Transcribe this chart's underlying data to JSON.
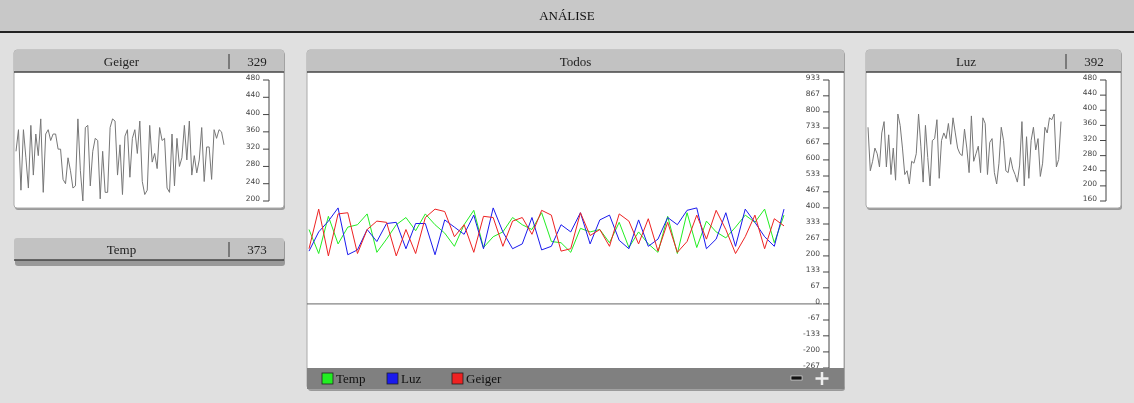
{
  "chart_data": [
    {
      "type": "other",
      "title": "ANÁLISE"
    },
    {
      "type": "line",
      "title": "Geiger",
      "annotations": [
        "329"
      ],
      "categories": [
        null,
        null,
        null,
        null,
        null,
        null,
        null,
        null,
        null,
        null,
        null,
        null,
        null,
        null,
        null,
        null,
        null,
        null,
        null,
        null,
        null,
        null,
        null,
        null,
        null,
        null,
        null,
        null,
        null,
        null,
        null,
        null,
        null,
        null,
        null,
        null,
        null,
        null,
        null,
        null,
        null,
        null,
        null,
        null,
        null,
        null,
        null,
        null,
        null,
        null,
        null,
        null,
        null,
        null,
        null,
        null,
        null,
        null,
        null,
        null,
        null,
        null,
        null,
        null,
        null,
        null,
        null,
        null,
        null,
        null,
        null,
        null,
        null,
        null,
        null,
        null,
        null,
        null,
        null,
        null,
        null,
        null,
        null,
        null,
        null
      ],
      "values": [
        315,
        365,
        225,
        365,
        300,
        230,
        375,
        260,
        355,
        305,
        390,
        220,
        355,
        365,
        340,
        355,
        355,
        320,
        320,
        250,
        240,
        300,
        270,
        230,
        235,
        390,
        270,
        200,
        370,
        375,
        235,
        315,
        345,
        340,
        205,
        315,
        220,
        220,
        370,
        390,
        385,
        260,
        330,
        215,
        350,
        365,
        255,
        345,
        365,
        310,
        385,
        245,
        215,
        225,
        375,
        290,
        310,
        275,
        370,
        340,
        345,
        230,
        220,
        355,
        235,
        345,
        280,
        300,
        375,
        295,
        385,
        260,
        305,
        265,
        295,
        370,
        245,
        325,
        325,
        250,
        365,
        345,
        365,
        360,
        330
      ],
      "color": "#777777",
      "line_style": "solid",
      "ylim": [
        200,
        480
      ],
      "yticks": [
        200,
        240,
        280,
        320,
        360,
        400,
        440,
        480
      ],
      "grid": false
    },
    {
      "type": "other",
      "title": "Temp",
      "annotations": [
        "373"
      ]
    },
    {
      "type": "line",
      "title": "Todos",
      "categories": [
        null,
        null,
        null,
        null,
        null,
        null,
        null,
        null,
        null,
        null,
        null,
        null,
        null,
        null,
        null,
        null,
        null,
        null,
        null,
        null,
        null,
        null,
        null,
        null,
        null,
        null,
        null,
        null,
        null,
        null,
        null,
        null,
        null,
        null,
        null,
        null,
        null,
        null,
        null,
        null,
        null,
        null,
        null,
        null,
        null,
        null,
        null,
        null,
        null,
        null
      ],
      "series": [
        {
          "name": "Temp",
          "color": "#22ee22",
          "values": [
            310,
            210,
            365,
            250,
            320,
            330,
            375,
            215,
            270,
            330,
            360,
            305,
            375,
            330,
            295,
            240,
            330,
            390,
            235,
            280,
            300,
            360,
            330,
            310,
            380,
            260,
            255,
            215,
            315,
            300,
            310,
            255,
            340,
            235,
            300,
            250,
            215,
            365,
            210,
            380,
            235,
            345,
            300,
            275,
            320,
            370,
            340,
            395,
            255,
            370
          ]
        },
        {
          "name": "Luz",
          "color": "#1a1aee",
          "values": [
            220,
            300,
            345,
            400,
            205,
            225,
            310,
            260,
            335,
            340,
            230,
            335,
            335,
            205,
            350,
            320,
            290,
            370,
            230,
            400,
            300,
            230,
            250,
            360,
            225,
            240,
            330,
            300,
            380,
            250,
            350,
            370,
            265,
            230,
            350,
            240,
            270,
            360,
            330,
            390,
            400,
            230,
            270,
            380,
            240,
            395,
            340,
            280,
            240,
            395
          ]
        },
        {
          "name": "Geiger",
          "color": "#ee2222",
          "values": [
            230,
            395,
            200,
            375,
            380,
            210,
            310,
            345,
            340,
            200,
            310,
            210,
            360,
            395,
            385,
            280,
            330,
            215,
            365,
            360,
            240,
            345,
            360,
            290,
            390,
            370,
            220,
            230,
            380,
            285,
            310,
            240,
            375,
            345,
            250,
            355,
            220,
            340,
            215,
            260,
            370,
            270,
            390,
            310,
            210,
            280,
            370,
            230,
            355,
            325
          ]
        }
      ],
      "line_style": "solid",
      "ref_lines": [
        {
          "axis": "y",
          "value": 0,
          "color": "#666666"
        }
      ],
      "ylim": [
        -267,
        933
      ],
      "yticks": [
        -267,
        -200,
        -133,
        -67,
        0,
        67,
        133,
        200,
        267,
        333,
        400,
        467,
        533,
        600,
        667,
        733,
        800,
        867,
        933
      ],
      "grid": false,
      "legend": "bottom left"
    },
    {
      "type": "line",
      "title": "Luz",
      "annotations": [
        "392"
      ],
      "categories": [
        null,
        null,
        null,
        null,
        null,
        null,
        null,
        null,
        null,
        null,
        null,
        null,
        null,
        null,
        null,
        null,
        null,
        null,
        null,
        null,
        null,
        null,
        null,
        null,
        null,
        null,
        null,
        null,
        null,
        null,
        null,
        null,
        null,
        null,
        null,
        null,
        null,
        null,
        null,
        null,
        null,
        null,
        null,
        null,
        null,
        null,
        null,
        null,
        null,
        null,
        null,
        null,
        null,
        null,
        null,
        null,
        null,
        null,
        null,
        null,
        null,
        null,
        null,
        null,
        null,
        null,
        null,
        null,
        null,
        null,
        null,
        null,
        null,
        null,
        null,
        null,
        null,
        null,
        null,
        null,
        null,
        null,
        null,
        null,
        null
      ],
      "values": [
        355,
        240,
        265,
        300,
        285,
        250,
        340,
        370,
        250,
        335,
        230,
        300,
        215,
        390,
        360,
        300,
        230,
        240,
        205,
        265,
        260,
        285,
        390,
        305,
        210,
        360,
        275,
        200,
        320,
        325,
        375,
        220,
        320,
        340,
        325,
        365,
        310,
        380,
        340,
        300,
        285,
        280,
        350,
        300,
        235,
        385,
        265,
        285,
        305,
        235,
        380,
        365,
        230,
        315,
        325,
        235,
        205,
        260,
        355,
        320,
        240,
        235,
        275,
        245,
        230,
        210,
        255,
        370,
        200,
        330,
        220,
        320,
        355,
        295,
        325,
        225,
        260,
        355,
        340,
        380,
        375,
        390,
        250,
        270,
        370
      ],
      "color": "#777777",
      "line_style": "solid",
      "ylim": [
        160,
        480
      ],
      "yticks": [
        160,
        200,
        240,
        280,
        320,
        360,
        400,
        440,
        480
      ],
      "grid": false
    }
  ]
}
